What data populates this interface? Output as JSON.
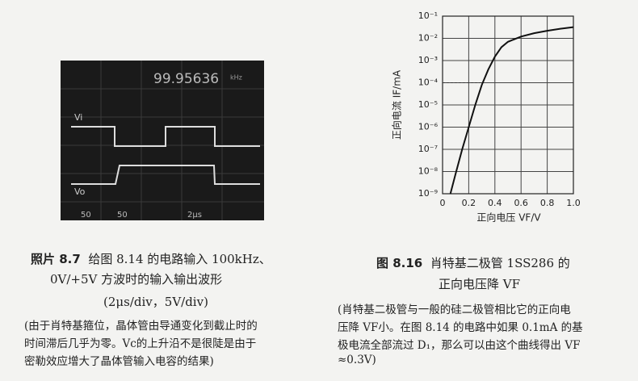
{
  "photo": {
    "readout": "99.95636",
    "unit": "kHz",
    "labels": [
      "Vi",
      "Vo"
    ],
    "scale_labels": [
      "50",
      "50",
      "2μs"
    ]
  },
  "photo_caption": {
    "number": "照片 8.7",
    "lines": [
      "给图 8.14 的电路输入 100kHz、",
      "0V/+5V 方波时的输入输出波形",
      "(2μs/div，5V/div)"
    ],
    "note": [
      "(由于肖特基箍位，晶体管由导通变化到截止时的",
      "时间滞后几乎为零。Vc的上升沿不是很陡是由于",
      "密勒效应增大了晶体管输入电容的结果)"
    ]
  },
  "chart_data": {
    "type": "line",
    "xlabel": "正向电压 VF/V",
    "ylabel": "正向电流 IF/mA",
    "log_y": true,
    "grid": true,
    "color": "#111111",
    "x": [
      0.06,
      0.1,
      0.15,
      0.2,
      0.25,
      0.3,
      0.35,
      0.4,
      0.45,
      0.5,
      0.6,
      0.7,
      0.8,
      0.9,
      1.0
    ],
    "values": [
      1e-09,
      8e-09,
      1e-07,
      1e-06,
      1e-05,
      8e-05,
      0.0004,
      0.0015,
      0.004,
      0.007,
      0.012,
      0.017,
      0.022,
      0.027,
      0.032
    ],
    "reference_y": 0.0001,
    "xlim": [
      0,
      1
    ],
    "xticks": [
      0,
      0.2,
      0.4,
      0.6,
      0.8,
      {
        "value": 1,
        "label": "1.0"
      }
    ],
    "ylim": [
      1e-09,
      0.1
    ],
    "yticks": [
      {
        "value": 0.1,
        "label": "10⁻¹"
      },
      {
        "value": 0.01,
        "label": "10⁻²"
      },
      {
        "value": 0.001,
        "label": "10⁻³"
      },
      {
        "value": 0.0001,
        "label": "10⁻⁴"
      },
      {
        "value": 1e-05,
        "label": "10⁻⁵"
      },
      {
        "value": 1e-06,
        "label": "10⁻⁶"
      },
      {
        "value": 1e-07,
        "label": "10⁻⁷"
      },
      {
        "value": 1e-08,
        "label": "10⁻⁸"
      },
      {
        "value": 1e-09,
        "label": "10⁻⁹"
      }
    ]
  },
  "chart_caption": {
    "number": "图 8.16",
    "lines": [
      "肖特基二极管 1SS286 的",
      "正向电压降 VF"
    ],
    "note": [
      "(肖特基二极管与一般的硅二极管相比它的正向电",
      "压降 VF小。在图 8.14 的电路中如果 0.1mA 的基",
      "极电流全部流过 D₁，那么可以由这个曲线得出 VF",
      "≈0.3V)"
    ]
  }
}
